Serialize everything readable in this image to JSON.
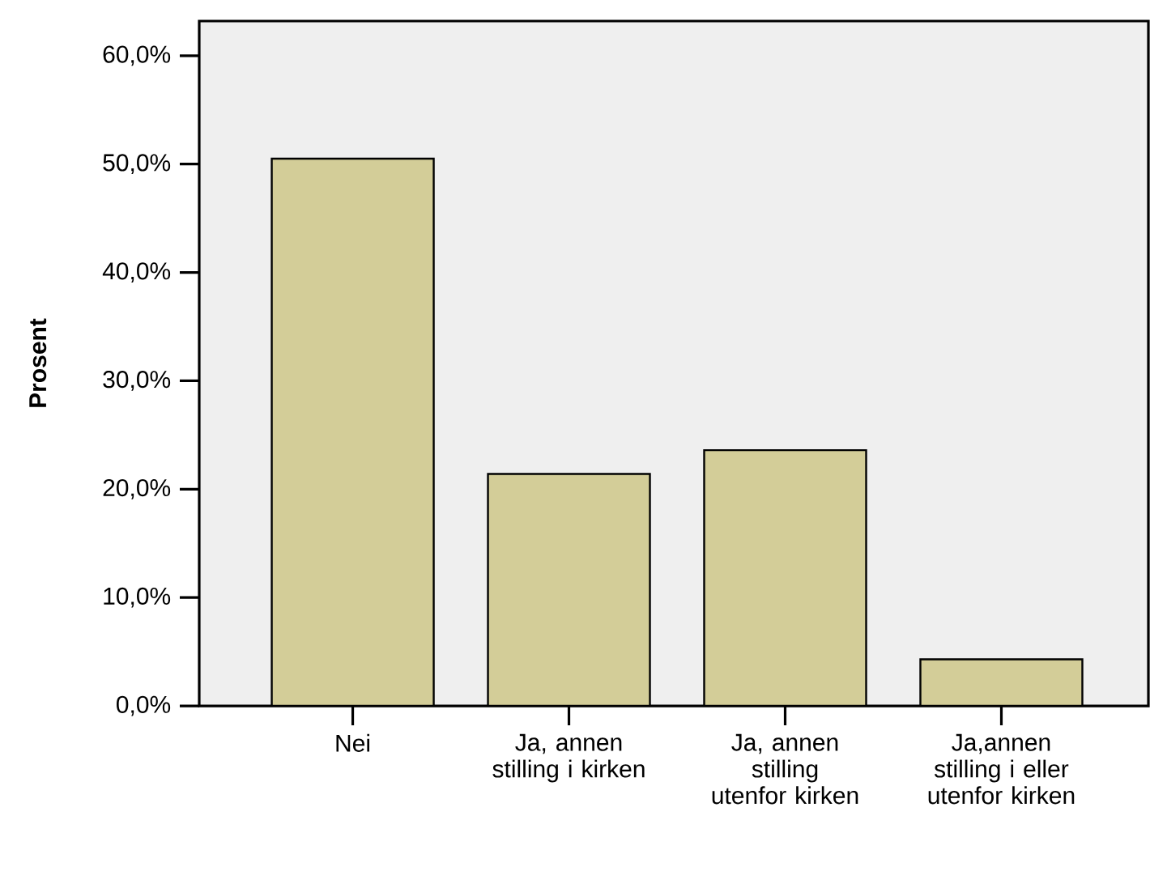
{
  "chart_data": {
    "type": "bar",
    "ylabel": "Prosent",
    "categories": [
      "Nei",
      "Ja, annen stilling i kirken",
      "Ja, annen stilling utenfor kirken",
      "Ja,annen stilling i eller utenfor kirken"
    ],
    "values": [
      50.5,
      21.4,
      23.6,
      4.3
    ],
    "color": "#d3cd98",
    "ylim": [
      0,
      63.2
    ],
    "yticks": [
      {
        "value": 0,
        "label": "0,0%"
      },
      {
        "value": 10,
        "label": "10,0%"
      },
      {
        "value": 20,
        "label": "20,0%"
      },
      {
        "value": 30,
        "label": "30,0%"
      },
      {
        "value": 40,
        "label": "40,0%"
      },
      {
        "value": 50,
        "label": "50,0%"
      },
      {
        "value": 60,
        "label": "60,0%"
      }
    ],
    "grid": false
  }
}
